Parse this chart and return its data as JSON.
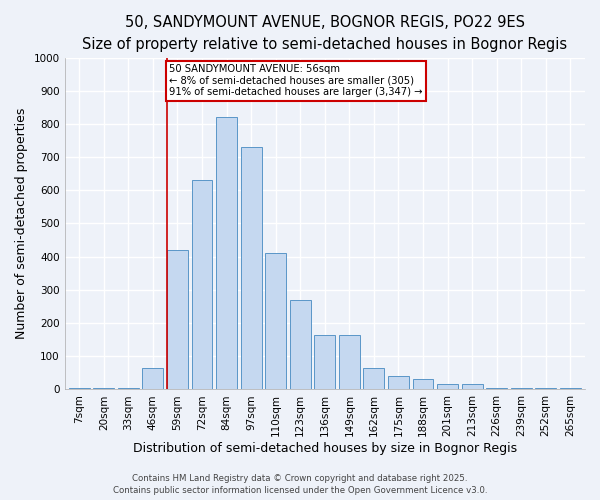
{
  "title1": "50, SANDYMOUNT AVENUE, BOGNOR REGIS, PO22 9ES",
  "title2": "Size of property relative to semi-detached houses in Bognor Regis",
  "xlabel": "Distribution of semi-detached houses by size in Bognor Regis",
  "ylabel": "Number of semi-detached properties",
  "footer1": "Contains HM Land Registry data © Crown copyright and database right 2025.",
  "footer2": "Contains public sector information licensed under the Open Government Licence v3.0.",
  "categories": [
    "7sqm",
    "20sqm",
    "33sqm",
    "46sqm",
    "59sqm",
    "72sqm",
    "84sqm",
    "97sqm",
    "110sqm",
    "123sqm",
    "136sqm",
    "149sqm",
    "162sqm",
    "175sqm",
    "188sqm",
    "201sqm",
    "213sqm",
    "226sqm",
    "239sqm",
    "252sqm",
    "265sqm"
  ],
  "values": [
    3,
    3,
    3,
    65,
    420,
    630,
    820,
    730,
    410,
    270,
    165,
    165,
    65,
    42,
    32,
    15,
    15,
    5,
    3,
    3,
    5
  ],
  "bar_color": "#c5d8f0",
  "bar_edge_color": "#5a96c8",
  "red_line_index": 4,
  "annotation_text": "50 SANDYMOUNT AVENUE: 56sqm\n← 8% of semi-detached houses are smaller (305)\n91% of semi-detached houses are larger (3,347) →",
  "annotation_box_color": "#ffffff",
  "annotation_edge_color": "#cc0000",
  "red_line_color": "#cc0000",
  "ylim": [
    0,
    1000
  ],
  "yticks": [
    0,
    100,
    200,
    300,
    400,
    500,
    600,
    700,
    800,
    900,
    1000
  ],
  "background_color": "#eef2f9",
  "grid_color": "#ffffff",
  "title_fontsize": 10.5,
  "subtitle_fontsize": 9.5,
  "axis_label_fontsize": 9,
  "tick_fontsize": 7.5,
  "footer_fontsize": 6.2
}
